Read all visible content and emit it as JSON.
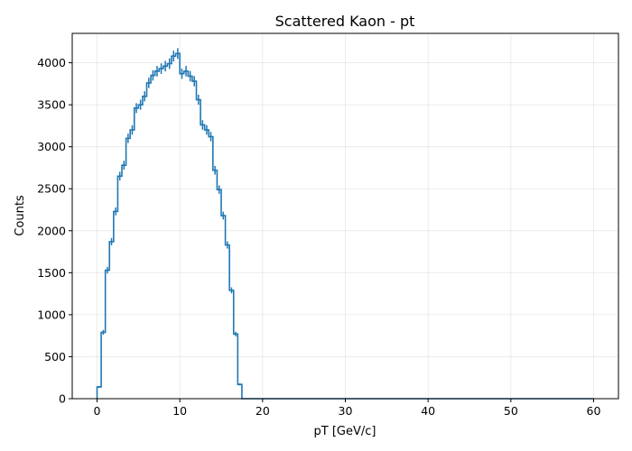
{
  "chart_data": {
    "type": "histogram",
    "title": "Scattered Kaon - pt",
    "xlabel": "pT [GeV/c]",
    "ylabel": "Counts",
    "xlim": [
      -3,
      63
    ],
    "ylim": [
      0,
      4350
    ],
    "xticks": [
      0,
      10,
      20,
      30,
      40,
      50,
      60
    ],
    "yticks": [
      0,
      500,
      1000,
      1500,
      2000,
      2500,
      3000,
      3500,
      4000
    ],
    "grid": true,
    "bin_width": 0.5,
    "line_color": "#1f77b4",
    "series": [
      {
        "bin_start": 0,
        "values": [
          140,
          790,
          1530,
          1870,
          2230,
          2650,
          2780,
          3100,
          3200,
          3460,
          3500,
          3600,
          3760,
          3850,
          3900,
          3930,
          3960,
          3990,
          4080,
          4110,
          3870,
          3900,
          3840,
          3780,
          3560,
          3260,
          3200,
          3120,
          2720,
          2490,
          2180,
          1830,
          1290,
          770,
          170,
          0,
          0,
          0,
          0,
          0,
          0,
          0,
          0,
          0,
          0,
          0,
          0,
          0,
          0,
          0,
          0,
          0,
          0,
          0,
          0,
          0,
          0,
          0,
          0,
          0,
          0,
          0,
          0,
          0,
          0,
          0,
          0,
          0,
          0,
          0,
          0,
          0,
          0,
          0,
          0,
          0,
          0,
          0,
          0,
          0,
          0,
          0,
          0,
          0,
          0,
          0,
          0,
          0,
          0,
          0,
          0,
          0,
          0,
          0,
          0,
          0,
          0,
          0,
          0,
          0,
          0,
          0,
          0,
          0,
          0,
          0,
          0,
          0,
          0,
          0,
          0,
          0,
          0,
          0,
          0,
          0,
          0,
          0,
          0,
          0
        ]
      }
    ]
  }
}
